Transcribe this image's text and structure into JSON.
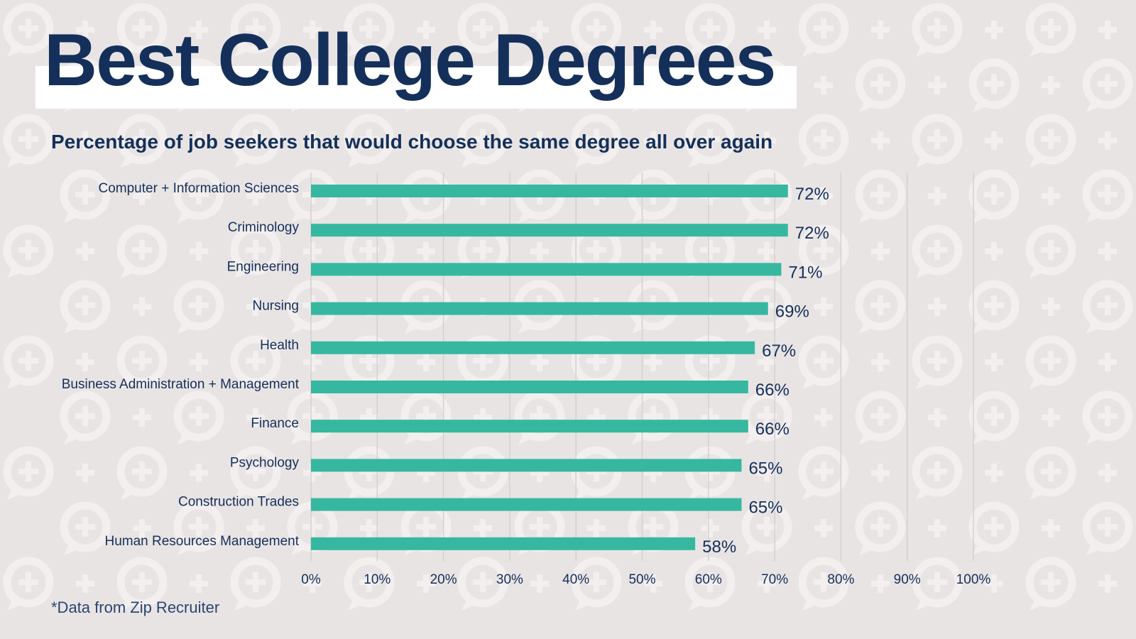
{
  "title": "Best College Degrees",
  "subtitle": "Percentage of job seekers that would choose the same degree all over again",
  "footer": "*Data from Zip Recruiter",
  "colors": {
    "background": "#e9e4e4",
    "pattern": "#f3efef",
    "bar": "#36b8a0",
    "text": "#14305a",
    "grid": "#d6d0d0"
  },
  "background_pattern_icon": "speech-bubble-plus-icon",
  "chart_data": {
    "type": "bar",
    "orientation": "horizontal",
    "categories": [
      "Computer + Information Sciences",
      "Criminology",
      "Engineering",
      "Nursing",
      "Health",
      "Business Administration + Management",
      "Finance",
      "Psychology",
      "Construction Trades",
      "Human Resources Management"
    ],
    "values": [
      72,
      72,
      71,
      69,
      67,
      66,
      66,
      65,
      65,
      58
    ],
    "data_labels": [
      "72%",
      "72%",
      "71%",
      "69%",
      "67%",
      "66%",
      "66%",
      "65%",
      "65%",
      "58%"
    ],
    "xlim": [
      0,
      100
    ],
    "xticks": [
      0,
      10,
      20,
      30,
      40,
      50,
      60,
      70,
      80,
      90,
      100
    ],
    "xtick_labels": [
      "0%",
      "10%",
      "20%",
      "30%",
      "40%",
      "50%",
      "60%",
      "70%",
      "80%",
      "90%",
      "100%"
    ],
    "grid": "vertical",
    "legend": "none"
  }
}
